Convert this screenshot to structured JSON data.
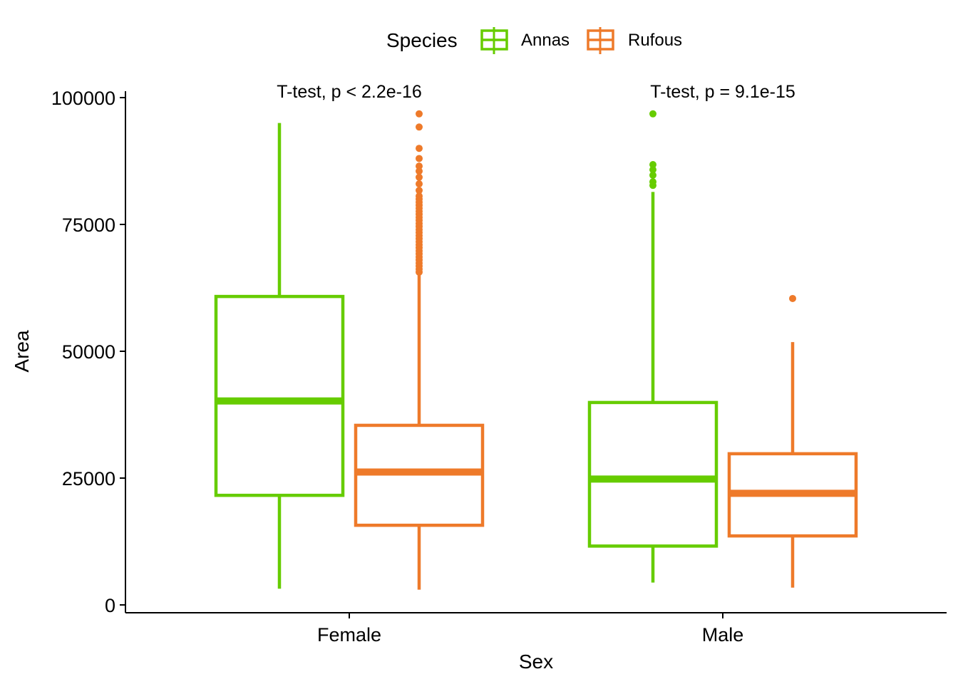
{
  "chart_data": {
    "type": "box",
    "xlabel": "Sex",
    "ylabel": "Area",
    "categories": [
      "Female",
      "Male"
    ],
    "ylim": [
      0,
      100000
    ],
    "yticks": [
      0,
      25000,
      50000,
      75000,
      100000
    ],
    "grid": false,
    "legend": {
      "title": "Species",
      "position": "top",
      "entries": [
        "Annas",
        "Rufous"
      ]
    },
    "colors": {
      "Annas": "#66cc00",
      "Rufous": "#ee7a2a"
    },
    "series": [
      {
        "name": "Annas",
        "boxes": [
          {
            "category": "Female",
            "whisker_low": 3200,
            "q1": 21600,
            "median": 40200,
            "q3": 60800,
            "whisker_high": 95000,
            "outliers": []
          },
          {
            "category": "Male",
            "whisker_low": 4400,
            "q1": 11600,
            "median": 24800,
            "q3": 39900,
            "whisker_high": 81400,
            "outliers": [
              82700,
              83400,
              84700,
              85800,
              86800,
              96800
            ]
          }
        ]
      },
      {
        "name": "Rufous",
        "boxes": [
          {
            "category": "Female",
            "whisker_low": 3000,
            "q1": 15700,
            "median": 26200,
            "q3": 35400,
            "whisker_high": 65000,
            "outliers": [
              65600,
              66200,
              66800,
              67400,
              68000,
              68600,
              69200,
              69800,
              70400,
              71000,
              71600,
              72200,
              72800,
              73400,
              74000,
              74600,
              75200,
              75800,
              76400,
              77000,
              77600,
              78200,
              78800,
              79400,
              80000,
              80600,
              81700,
              83000,
              84300,
              85500,
              86500,
              88000,
              90000,
              94200,
              96800
            ]
          },
          {
            "category": "Male",
            "whisker_low": 3400,
            "q1": 13600,
            "median": 22000,
            "q3": 29800,
            "whisker_high": 51800,
            "outliers": [
              60400
            ]
          }
        ]
      }
    ],
    "annotations": [
      {
        "category": "Female",
        "text": "T-test, p < 2.2e-16"
      },
      {
        "category": "Male",
        "text": "T-test, p = 9.1e-15"
      }
    ]
  }
}
